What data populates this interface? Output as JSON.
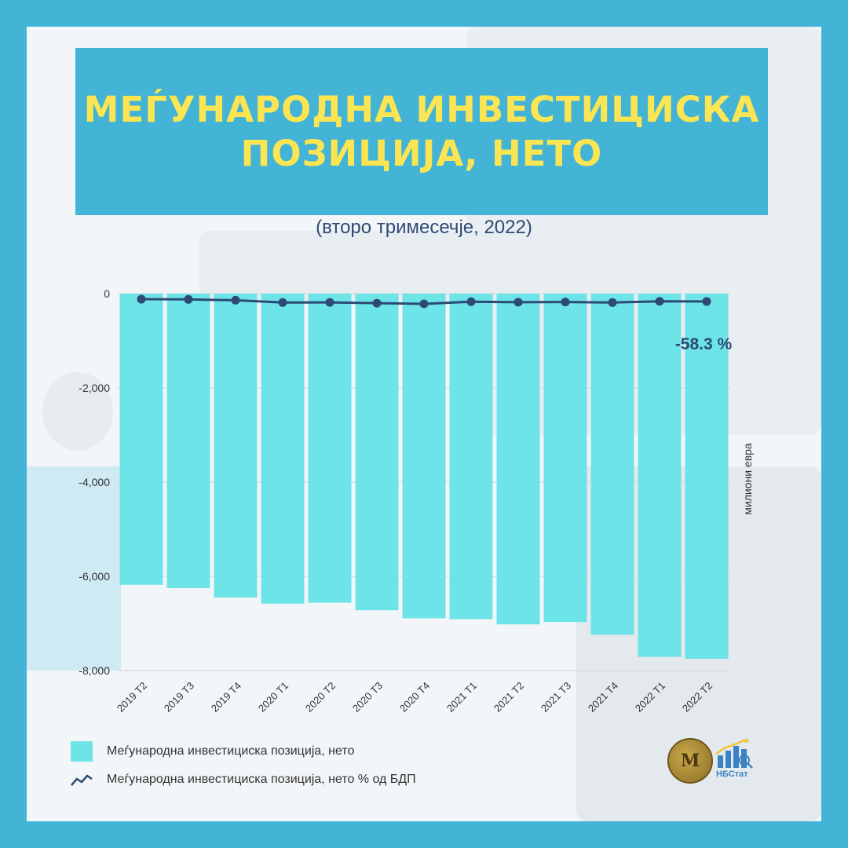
{
  "title": {
    "line1": "МЕЃУНАРОДНА ИНВЕСТИЦИСКА",
    "line2": "ПОЗИЦИЈА, НЕТО"
  },
  "subtitle": "(второ тримесечје, 2022)",
  "colors": {
    "frame": "#43b4d6",
    "title_text": "#fbe552",
    "bar": "#6de4e8",
    "line": "#2c4a73"
  },
  "chart_data": {
    "type": "bar",
    "categories": [
      "2019 T2",
      "2019 T3",
      "2019 T4",
      "2020 T1",
      "2020 T2",
      "2020 T3",
      "2020 T4",
      "2021 T1",
      "2021 T2",
      "2021 T3",
      "2021 T4",
      "2022 T1",
      "2022 T2"
    ],
    "series": [
      {
        "name": "Меѓународна инвестициска позиција, нето",
        "type": "bar",
        "values": [
          -6180,
          -6250,
          -6450,
          -6580,
          -6560,
          -6720,
          -6890,
          -6910,
          -7020,
          -6970,
          -7240,
          -7710,
          -7750
        ]
      },
      {
        "name": "Меѓународна инвестициска позиција, нето % од БДП",
        "type": "line",
        "values": [
          -53.0,
          -53.3,
          -54.6,
          -58.0,
          -57.8,
          -58.9,
          -60.0,
          -56.8,
          -57.5,
          -57.2,
          -58.0,
          -56.2,
          -56.4
        ]
      }
    ],
    "ylabel": "милиони евра",
    "ylim": [
      -8000,
      0
    ],
    "yticks": [
      "0",
      "-2,000",
      "-4,000",
      "-6,000",
      "-8,000"
    ],
    "ytick_values": [
      0,
      -2000,
      -4000,
      -6000,
      -8000
    ],
    "annotation": "-58.3 %",
    "grid": true,
    "legend_position": "bottom-left"
  },
  "logos": {
    "nbstat_label": "НБСтат",
    "seal_mark": "М"
  }
}
